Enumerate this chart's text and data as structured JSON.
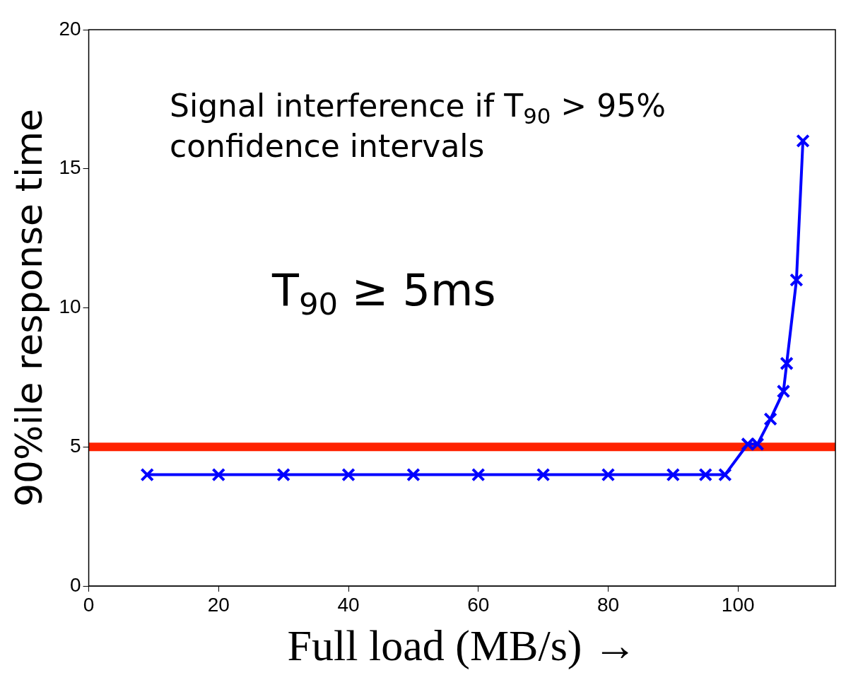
{
  "chart_data": {
    "type": "line",
    "xlabel": "Full load (MB/s) →",
    "ylabel": "90%ile response time",
    "x": [
      9,
      20,
      30,
      40,
      50,
      60,
      70,
      80,
      90,
      95,
      98,
      101.5,
      103,
      105,
      107,
      107.5,
      109,
      110
    ],
    "series": [
      {
        "color": "#0000ff",
        "values": [
          4,
          4,
          4,
          4,
          4,
          4,
          4,
          4,
          4,
          4,
          4,
          5.1,
          5.1,
          6,
          7,
          8,
          11,
          16
        ]
      }
    ],
    "xlim": [
      0,
      115
    ],
    "xticks": [
      0,
      20,
      40,
      60,
      80,
      100
    ],
    "ylim": [
      0,
      20
    ],
    "yticks": [
      0,
      5,
      10,
      15,
      20
    ],
    "ref_lines": [
      {
        "axis": "y",
        "value": 5,
        "color": "#ff2200"
      }
    ],
    "annotations": [
      "Signal interference if T$_{90}$ > 95% confidence intervals",
      "T$_{90}$ ≥ 5ms"
    ],
    "grid": false,
    "legend": false,
    "marker": "cross",
    "line_style": "solid"
  }
}
